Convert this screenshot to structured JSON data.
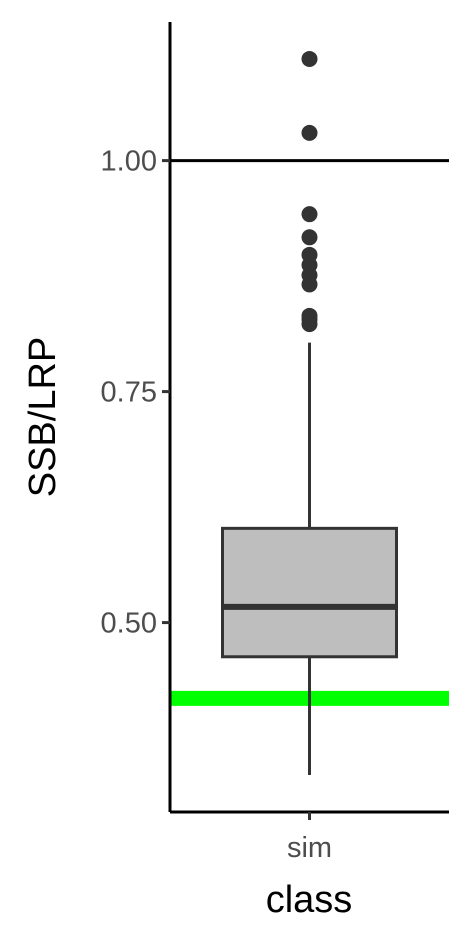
{
  "chart_data": {
    "type": "boxplot",
    "title": "",
    "xlabel": "class",
    "ylabel": "SSB/LRP",
    "categories": [
      "sim"
    ],
    "ylim": [
      0.295,
      1.15
    ],
    "yticks": [
      0.5,
      0.75,
      1.0
    ],
    "ytick_labels": [
      "0.50",
      "0.75",
      "1.00"
    ],
    "grid": false,
    "legend": "none",
    "boxes": [
      {
        "category": "sim",
        "whisker_low": 0.335,
        "q1": 0.463,
        "median": 0.517,
        "q3": 0.602,
        "whisker_high": 0.803,
        "outliers": [
          1.11,
          1.03,
          0.942,
          0.917,
          0.898,
          0.887,
          0.876,
          0.866,
          0.832,
          0.828,
          0.823
        ]
      }
    ],
    "reference_lines": [
      {
        "y": 1.0,
        "color": "#000000"
      },
      {
        "y": 0.418,
        "color": "#00ff00"
      }
    ],
    "colors": {
      "box_fill": "#bebebe",
      "box_stroke": "#333333",
      "outlier": "#333333",
      "axis": "#000000"
    }
  }
}
